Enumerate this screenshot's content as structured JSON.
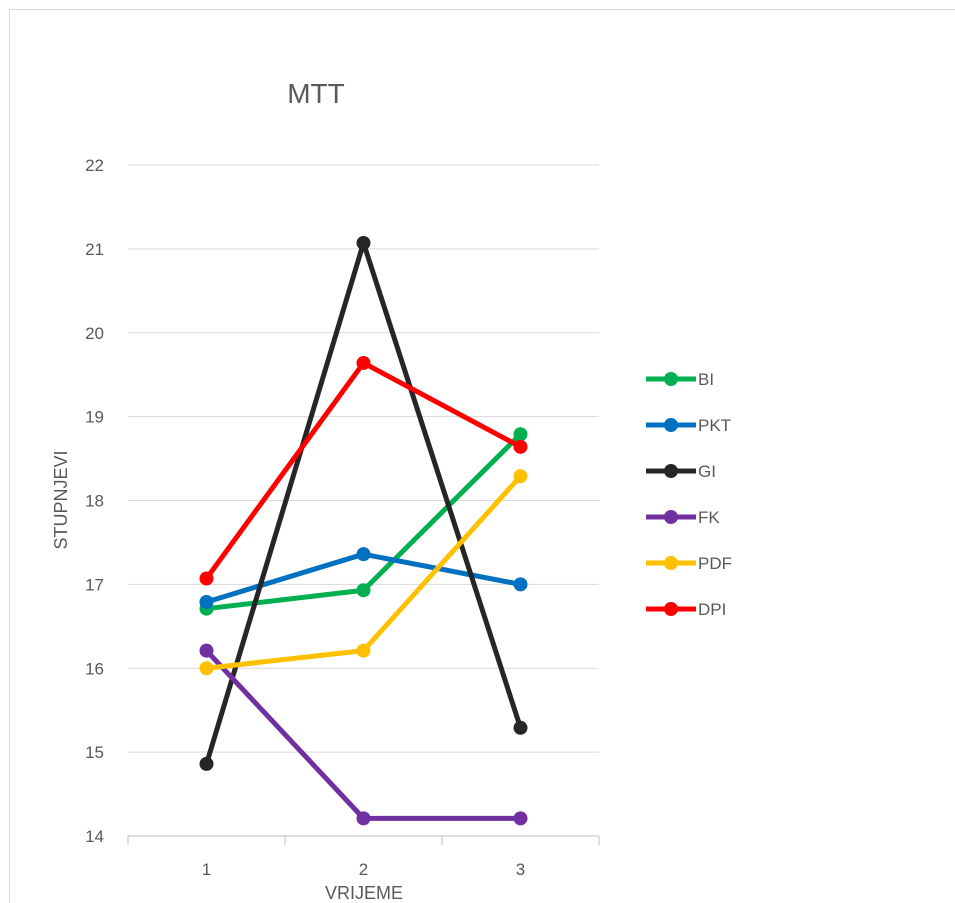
{
  "chart_data": {
    "type": "line",
    "title": "MTT",
    "xlabel": "VRIJEME",
    "ylabel": "STUPNJEVI",
    "categories": [
      "1",
      "2",
      "3"
    ],
    "ylim": [
      14,
      22
    ],
    "yticks": [
      14,
      15,
      16,
      17,
      18,
      19,
      20,
      21,
      22
    ],
    "grid": true,
    "legend_position": "right",
    "series": [
      {
        "name": "BI",
        "color": "#00b050",
        "values": [
          16.71,
          16.93,
          18.79
        ]
      },
      {
        "name": "PKT",
        "color": "#0070c0",
        "values": [
          16.79,
          17.36,
          17.0
        ]
      },
      {
        "name": "GI",
        "color": "#262626",
        "values": [
          14.86,
          21.07,
          15.29
        ]
      },
      {
        "name": "FK",
        "color": "#7030a0",
        "values": [
          16.21,
          14.21,
          14.21
        ]
      },
      {
        "name": "PDF",
        "color": "#ffc000",
        "values": [
          16.0,
          16.21,
          18.29
        ]
      },
      {
        "name": "DPI",
        "color": "#ff0000",
        "values": [
          17.07,
          19.64,
          18.64
        ]
      }
    ]
  }
}
